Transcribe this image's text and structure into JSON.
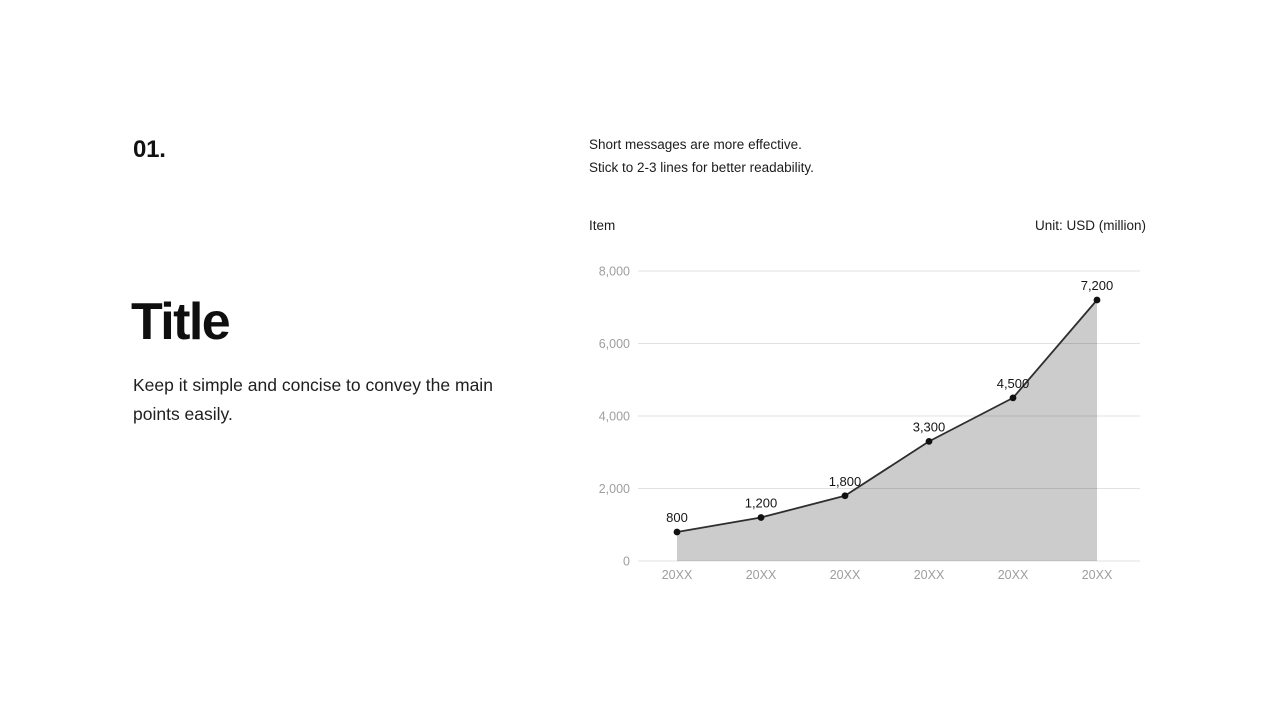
{
  "page": {
    "background": "#ffffff"
  },
  "left_column": {
    "index": "01.",
    "title": "Title",
    "description": "Keep it simple and concise to convey the main points easily."
  },
  "right_column": {
    "note_line1": "Short messages are more effective.",
    "note_line2": "Stick to 2-3 lines for better readability.",
    "item_label": "Item",
    "unit_label": "Unit: USD (million)"
  },
  "chart_data": {
    "type": "area",
    "categories": [
      "20XX",
      "20XX",
      "20XX",
      "20XX",
      "20XX",
      "20XX"
    ],
    "values": [
      800,
      1200,
      1800,
      3300,
      4500,
      7200
    ],
    "data_labels": [
      "800",
      "1,200",
      "1,800",
      "3,300",
      "4,500",
      "7,200"
    ],
    "title": "",
    "xlabel": "",
    "ylabel": "",
    "ylim": [
      0,
      8000
    ],
    "yticks": [
      0,
      2000,
      4000,
      6000,
      8000
    ],
    "ytick_labels": [
      "0",
      "2,000",
      "4,000",
      "6,000",
      "8,000"
    ],
    "grid": true,
    "legend": "none",
    "colors": {
      "line": "#2e2e2e",
      "dot": "#111111",
      "area_fill": "rgba(0,0,0,0.20)",
      "gridline": "#e2e2e2",
      "axis_label": "#9e9e9e",
      "data_label": "#161616"
    }
  }
}
